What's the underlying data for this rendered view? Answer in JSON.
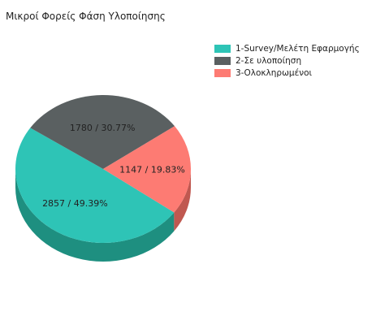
{
  "chart_data": {
    "type": "pie",
    "title": "Μικροί Φορείς Φάση Υλοποίησης",
    "legend_position": "top-right",
    "slices": [
      {
        "name": "1-Survey/Μελέτη Εφαρμογής",
        "value": 2857,
        "percent": 49.39,
        "label": "2857 /  49.39%",
        "color": "#2ec4b6",
        "side_color": "#1e8f80"
      },
      {
        "name": "2-Σε υλοποίηση",
        "value": 1780,
        "percent": 30.77,
        "label": "1780 /  30.77%",
        "color": "#5a6061",
        "side_color": "#3a3f40"
      },
      {
        "name": "3-Ολοκληρωμένοι",
        "value": 1147,
        "percent": 19.83,
        "label": "1147 /  19.83%",
        "color": "#fd7b73",
        "side_color": "#c05850"
      }
    ]
  }
}
